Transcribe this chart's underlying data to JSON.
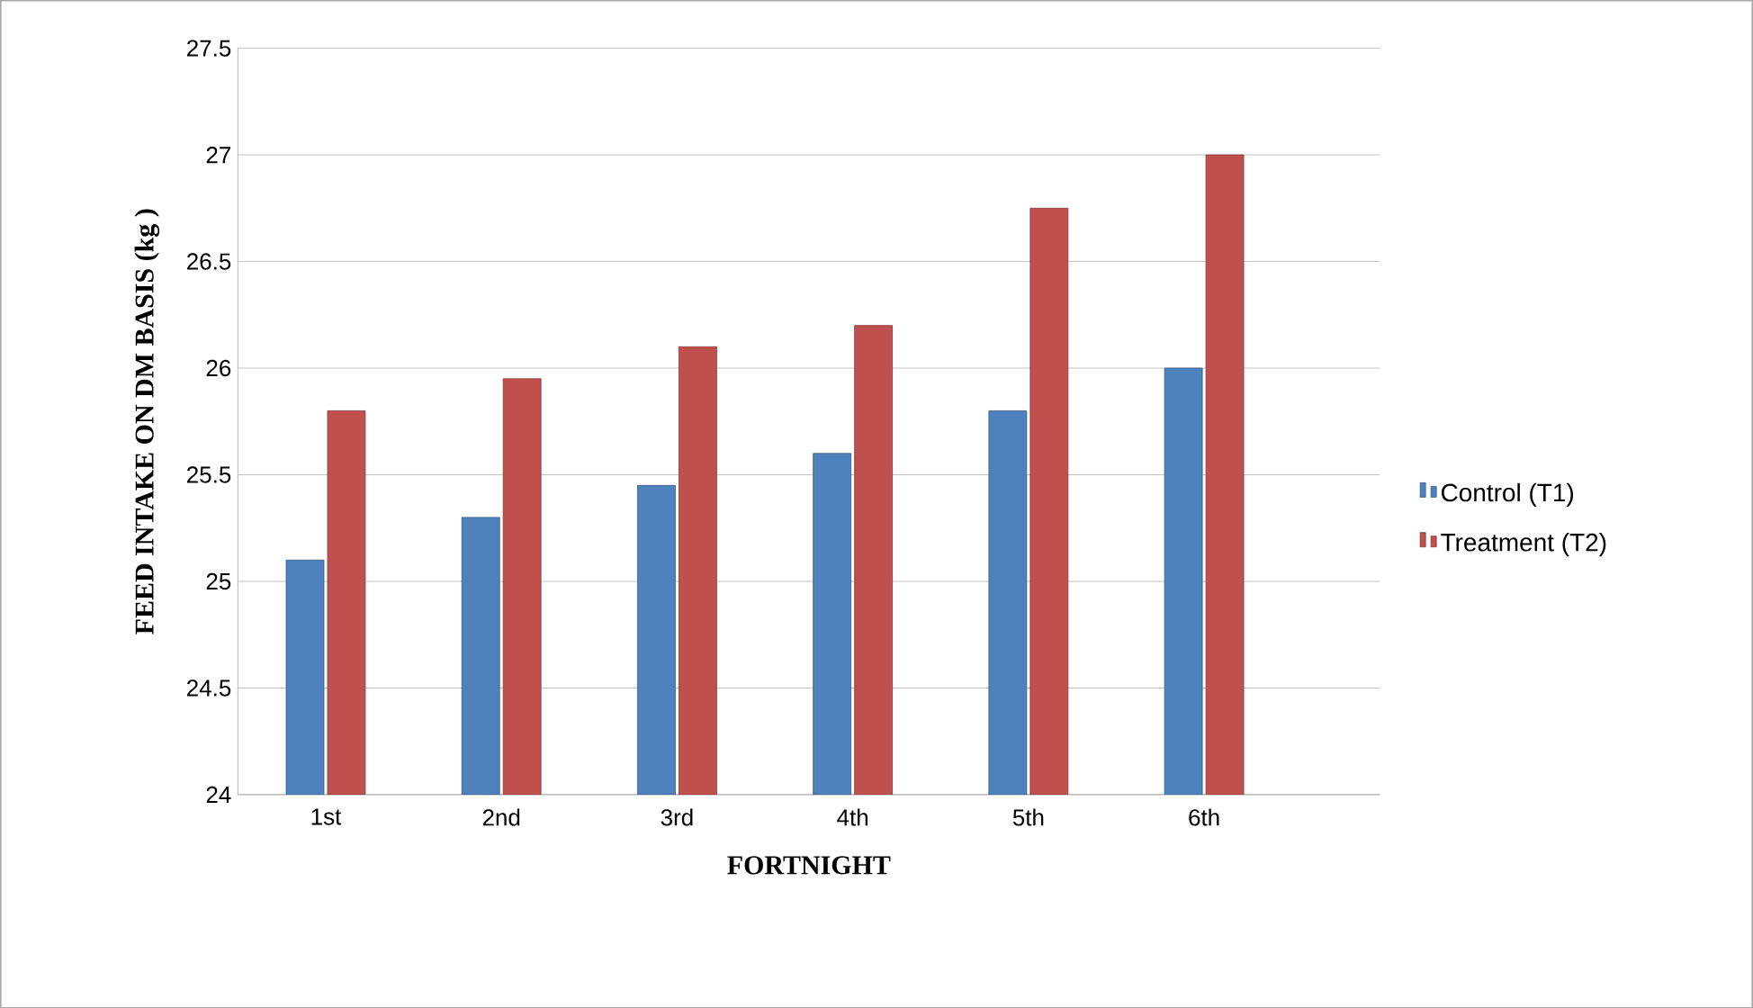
{
  "chart_data": {
    "type": "bar",
    "xlabel": "FORTNIGHT",
    "ylabel": "FEED  INTAKE  ON DM BASIS  (kg )",
    "categories": [
      "1st",
      "2nd",
      "3rd",
      "4th",
      "5th",
      "6th",
      null
    ],
    "series": [
      {
        "name": "Control (T1)",
        "color": "#4f81bd",
        "values": [
          25.1,
          25.3,
          25.45,
          25.6,
          25.8,
          26.0,
          null
        ]
      },
      {
        "name": "Treatment (T2)",
        "color": "#c0504d",
        "values": [
          25.8,
          25.95,
          26.1,
          26.2,
          26.75,
          27.0,
          null
        ]
      }
    ],
    "ylim": [
      24,
      27.5
    ],
    "yticks": [
      24,
      24.5,
      25,
      25.5,
      26,
      26.5,
      27,
      27.5
    ],
    "grid": "y",
    "legend": "right"
  }
}
